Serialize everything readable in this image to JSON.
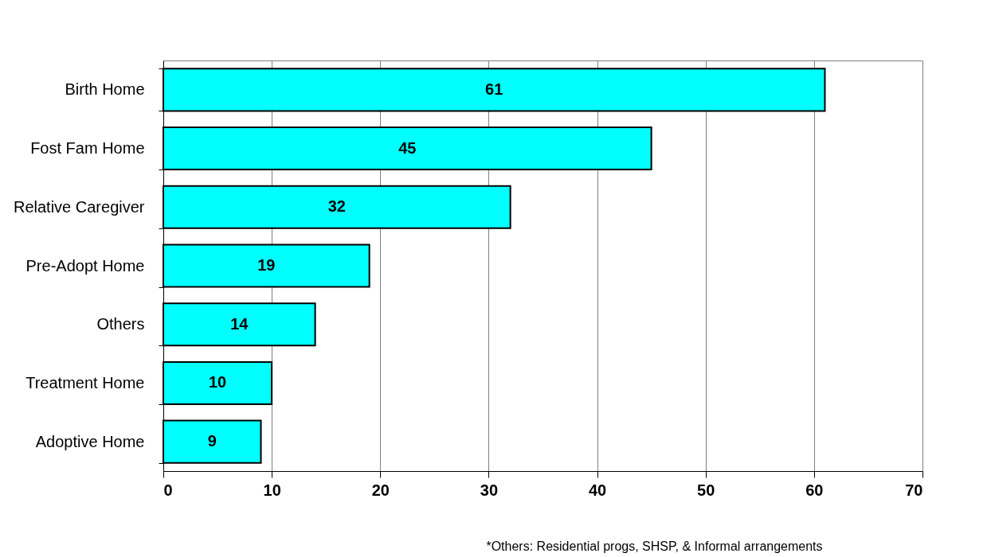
{
  "chart_data": {
    "type": "bar",
    "orientation": "horizontal",
    "categories": [
      "Birth Home",
      "Fost Fam Home",
      "Relative Caregiver",
      "Pre-Adopt Home",
      "Others",
      "Treatment Home",
      "Adoptive Home"
    ],
    "values": [
      61,
      45,
      32,
      19,
      14,
      10,
      9
    ],
    "color": "#00ffff",
    "xlim": [
      0,
      70
    ],
    "xticks": [
      0,
      10,
      20,
      30,
      40,
      50,
      60,
      70
    ],
    "grid": "x",
    "data_labels": true,
    "annotations": [
      "*Others: Residential progs, SHSP, & Informal arrangements"
    ]
  }
}
